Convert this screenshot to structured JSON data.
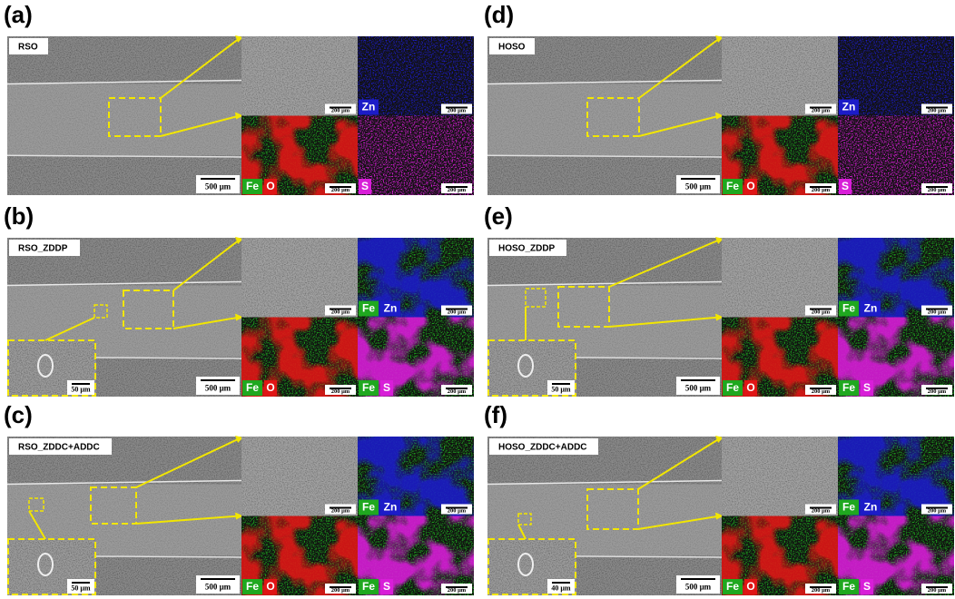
{
  "panels": [
    {
      "label": "(a)",
      "sample": "RSO",
      "main_scale": "500 μm",
      "zoom_scale": "200 μm",
      "maps": [
        {
          "elements": [
            {
              "symbol": "Zn",
              "color": "#1c1cc8"
            }
          ],
          "scale": "200 μm"
        },
        {
          "elements": [
            {
              "symbol": "Fe",
              "color": "#1fa81f"
            },
            {
              "symbol": "O",
              "color": "#e01515"
            }
          ],
          "scale": "200 μm"
        },
        {
          "elements": [
            {
              "symbol": "S",
              "color": "#d81ed8"
            }
          ],
          "scale": "200 μm"
        }
      ]
    },
    {
      "label": "(b)",
      "sample": "RSO_ZDDP",
      "main_scale": "500 μm",
      "zoom_scale": "200 μm",
      "inset_scale": "50 μm",
      "maps": [
        {
          "elements": [
            {
              "symbol": "Fe",
              "color": "#1fa81f"
            },
            {
              "symbol": "Zn",
              "color": "#1c1cc8"
            }
          ],
          "scale": "200 μm"
        },
        {
          "elements": [
            {
              "symbol": "Fe",
              "color": "#1fa81f"
            },
            {
              "symbol": "O",
              "color": "#e01515"
            }
          ],
          "scale": "200 μm"
        },
        {
          "elements": [
            {
              "symbol": "Fe",
              "color": "#1fa81f"
            },
            {
              "symbol": "S",
              "color": "#d81ed8"
            }
          ],
          "scale": "200 μm"
        }
      ]
    },
    {
      "label": "(c)",
      "sample": "RSO_ZDDC+ADDC",
      "main_scale": "500 μm",
      "zoom_scale": "200 μm",
      "inset_scale": "50 μm",
      "maps": [
        {
          "elements": [
            {
              "symbol": "Fe",
              "color": "#1fa81f"
            },
            {
              "symbol": "Zn",
              "color": "#1c1cc8"
            }
          ],
          "scale": "200 μm"
        },
        {
          "elements": [
            {
              "symbol": "Fe",
              "color": "#1fa81f"
            },
            {
              "symbol": "O",
              "color": "#e01515"
            }
          ],
          "scale": "200 μm"
        },
        {
          "elements": [
            {
              "symbol": "Fe",
              "color": "#1fa81f"
            },
            {
              "symbol": "S",
              "color": "#d81ed8"
            }
          ],
          "scale": "200 μm"
        }
      ]
    },
    {
      "label": "(d)",
      "sample": "HOSO",
      "main_scale": "500 μm",
      "zoom_scale": "200 μm",
      "maps": [
        {
          "elements": [
            {
              "symbol": "Zn",
              "color": "#1c1cc8"
            }
          ],
          "scale": "200 μm"
        },
        {
          "elements": [
            {
              "symbol": "Fe",
              "color": "#1fa81f"
            },
            {
              "symbol": "O",
              "color": "#e01515"
            }
          ],
          "scale": "200 μm"
        },
        {
          "elements": [
            {
              "symbol": "S",
              "color": "#d81ed8"
            }
          ],
          "scale": "200 μm"
        }
      ]
    },
    {
      "label": "(e)",
      "sample": "HOSO_ZDDP",
      "main_scale": "500 μm",
      "zoom_scale": "200 μm",
      "inset_scale": "50 μm",
      "maps": [
        {
          "elements": [
            {
              "symbol": "Fe",
              "color": "#1fa81f"
            },
            {
              "symbol": "Zn",
              "color": "#1c1cc8"
            }
          ],
          "scale": "200 μm"
        },
        {
          "elements": [
            {
              "symbol": "Fe",
              "color": "#1fa81f"
            },
            {
              "symbol": "O",
              "color": "#e01515"
            }
          ],
          "scale": "200 μm"
        },
        {
          "elements": [
            {
              "symbol": "Fe",
              "color": "#1fa81f"
            },
            {
              "symbol": "S",
              "color": "#d81ed8"
            }
          ],
          "scale": "200 μm"
        }
      ]
    },
    {
      "label": "(f)",
      "sample": "HOSO_ZDDC+ADDC",
      "main_scale": "500 μm",
      "zoom_scale": "200 μm",
      "inset_scale": "40 μm",
      "maps": [
        {
          "elements": [
            {
              "symbol": "Fe",
              "color": "#1fa81f"
            },
            {
              "symbol": "Zn",
              "color": "#1c1cc8"
            }
          ],
          "scale": "200 μm"
        },
        {
          "elements": [
            {
              "symbol": "Fe",
              "color": "#1fa81f"
            },
            {
              "symbol": "O",
              "color": "#e01515"
            }
          ],
          "scale": "200 μm"
        },
        {
          "elements": [
            {
              "symbol": "Fe",
              "color": "#1fa81f"
            },
            {
              "symbol": "S",
              "color": "#d81ed8"
            }
          ],
          "scale": "200 μm"
        }
      ]
    }
  ]
}
